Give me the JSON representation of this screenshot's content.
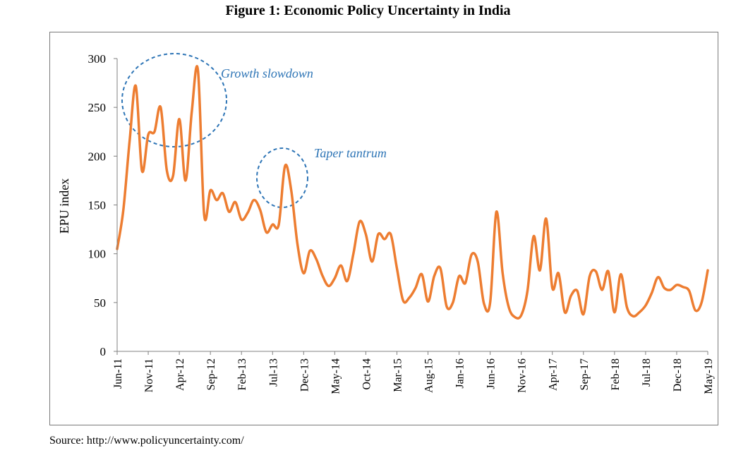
{
  "figure_title": "Figure 1: Economic Policy Uncertainty in India",
  "source": "Source: http://www.policyuncertainty.com/",
  "colors": {
    "line": "#ed7d31",
    "annotation": "#2e75b6",
    "axis": "#808080"
  },
  "chart_data": {
    "type": "line",
    "title": "Figure 1: Economic Policy Uncertainty in India",
    "xlabel": "",
    "ylabel": "EPU index",
    "ylim": [
      0,
      300
    ],
    "yticks": [
      0,
      50,
      100,
      150,
      200,
      250,
      300
    ],
    "grid": false,
    "x_tick_labels": [
      "Jun-11",
      "Nov-11",
      "Apr-12",
      "Sep-12",
      "Feb-13",
      "Jul-13",
      "Dec-13",
      "May-14",
      "Oct-14",
      "Mar-15",
      "Aug-15",
      "Jan-16",
      "Jun-16",
      "Nov-16",
      "Apr-17",
      "Sep-17",
      "Feb-18",
      "Jul-18",
      "Dec-18",
      "May-19"
    ],
    "x_start": "Jun-11",
    "x_end": "May-19",
    "series": [
      {
        "name": "EPU index",
        "values": [
          105,
          145,
          215,
          272,
          185,
          222,
          225,
          250,
          185,
          180,
          238,
          175,
          245,
          288,
          140,
          165,
          155,
          162,
          143,
          153,
          135,
          142,
          155,
          145,
          122,
          130,
          130,
          190,
          165,
          110,
          80,
          103,
          95,
          78,
          67,
          75,
          88,
          72,
          100,
          133,
          120,
          92,
          120,
          115,
          120,
          85,
          52,
          55,
          65,
          79,
          51,
          77,
          85,
          46,
          50,
          77,
          70,
          99,
          92,
          49,
          50,
          143,
          80,
          45,
          35,
          37,
          62,
          118,
          83,
          136,
          65,
          80,
          40,
          57,
          62,
          38,
          77,
          82,
          63,
          82,
          40,
          79,
          45,
          36,
          40,
          47,
          60,
          76,
          65,
          63,
          68,
          66,
          62,
          42,
          50,
          83
        ]
      }
    ],
    "annotations": [
      {
        "label": "Growth slowdown",
        "from": "Jul-11",
        "to": "Jun-12"
      },
      {
        "label": "Taper tantrum",
        "from": "Jun-13",
        "to": "Oct-13"
      }
    ]
  }
}
